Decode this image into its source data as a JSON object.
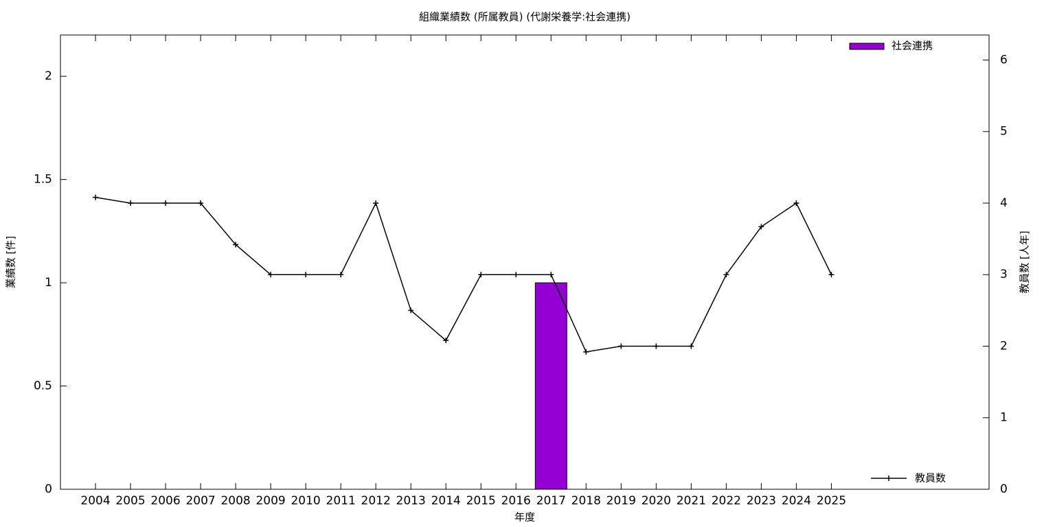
{
  "chart_data": {
    "type": "bar",
    "title": "組織業績数 (所属教員) (代謝栄養学:社会連携)",
    "x_label": "年度",
    "y_label": "業績数 [件]",
    "y2_label": "教員数 [人年]",
    "categories": [
      "2004",
      "2005",
      "2006",
      "2007",
      "2008",
      "2009",
      "2010",
      "2011",
      "2012",
      "2013",
      "2014",
      "2015",
      "2016",
      "2017",
      "2018",
      "2019",
      "2020",
      "2021",
      "2022",
      "2023",
      "2024",
      "2025"
    ],
    "series": [
      {
        "name": "社会連携",
        "type": "bar",
        "color": "#9400d3",
        "axis": "y",
        "legend": "top-right",
        "values": [
          0,
          0,
          0,
          0,
          0,
          0,
          0,
          0,
          0,
          0,
          0,
          0,
          0,
          1,
          0,
          0,
          0,
          0,
          0,
          0,
          0,
          0
        ]
      },
      {
        "name": "教員数",
        "type": "line",
        "color": "#000000",
        "axis": "y2",
        "legend": "bottom-right",
        "values": [
          4.08,
          4,
          4,
          4,
          3.42,
          3,
          3,
          3,
          4,
          2.5,
          2.08,
          3,
          3,
          3,
          1.92,
          2,
          2,
          2,
          3,
          3.67,
          4,
          3
        ]
      }
    ],
    "ylim": [
      0,
      2.2
    ],
    "yticks": [
      0,
      0.5,
      1,
      1.5,
      2
    ],
    "y2lim": [
      0,
      6.35
    ],
    "y2ticks": [
      0,
      1,
      2,
      3,
      4,
      5,
      6
    ],
    "grid": false
  }
}
